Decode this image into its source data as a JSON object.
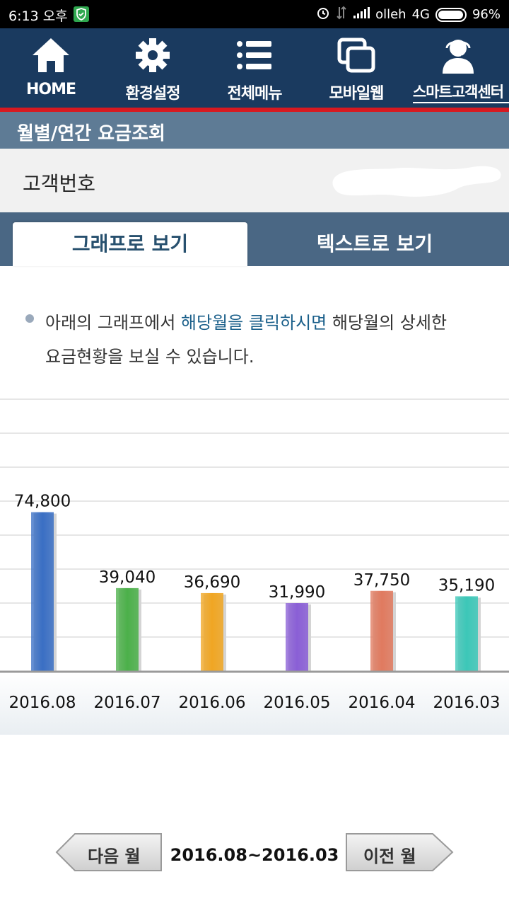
{
  "status_bar": {
    "time": "6:13 오후",
    "carrier": "olleh",
    "network": "4G",
    "battery": "96%"
  },
  "top_nav": {
    "items": [
      {
        "label": "HOME",
        "icon": "home-icon"
      },
      {
        "label": "환경설정",
        "icon": "gear-icon"
      },
      {
        "label": "전체메뉴",
        "icon": "list-icon"
      },
      {
        "label": "모바일웹",
        "icon": "windows-icon"
      },
      {
        "label": "스마트고객센터",
        "icon": "headset-icon"
      }
    ]
  },
  "section": {
    "title": "월별/연간 요금조회"
  },
  "customer": {
    "label": "고객번호"
  },
  "tabs": {
    "graph": "그래프로 보기",
    "text": "텍스트로 보기"
  },
  "notice": {
    "pre": "아래의 그래프에서 ",
    "highlight": "해당월을 클릭하시면",
    "post": " 해당월의 상세한",
    "line2": "요금현황을 보실 수 있습니다."
  },
  "chart_data": {
    "type": "bar",
    "categories": [
      "2016.08",
      "2016.07",
      "2016.06",
      "2016.05",
      "2016.04",
      "2016.03"
    ],
    "values": [
      74800,
      39040,
      36690,
      31990,
      37750,
      35190
    ],
    "value_labels": [
      "74,800",
      "39,040",
      "36,690",
      "31,990",
      "37,750",
      "35,190"
    ],
    "colors": [
      "#3a6fc4",
      "#4cb04a",
      "#f0a623",
      "#8a5fd6",
      "#e07a5f",
      "#3cc7b8"
    ],
    "grid": true,
    "ylim": [
      0,
      80000
    ]
  },
  "pager": {
    "prev_label": "다음 월",
    "range": "2016.08~2016.03",
    "next_label": "이전 월"
  }
}
